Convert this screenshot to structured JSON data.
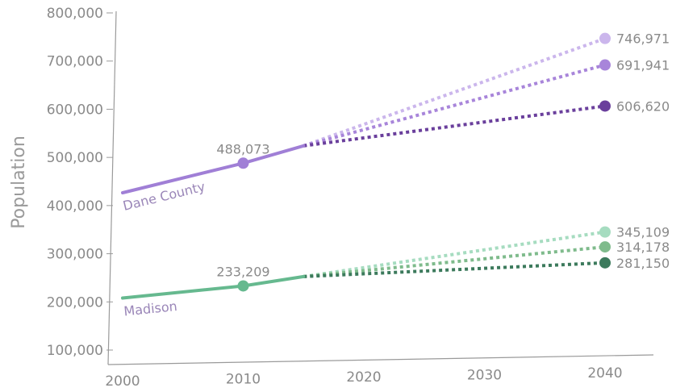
{
  "chart_data": {
    "type": "line",
    "ylabel": "Population",
    "xlabel": "",
    "xlim": [
      1997,
      2045
    ],
    "ylim": [
      100000,
      800000
    ],
    "x_ticks": [
      2000,
      2010,
      2020,
      2030,
      2040
    ],
    "x_tick_labels": [
      "2000",
      "2010",
      "2020",
      "2030",
      "2040"
    ],
    "y_ticks": [
      100000,
      200000,
      300000,
      400000,
      500000,
      600000,
      700000,
      800000
    ],
    "y_tick_labels": [
      "100,000",
      "200,000",
      "300,000",
      "400,000",
      "500,000",
      "600,000",
      "700,000",
      "800,000"
    ],
    "grid": false,
    "groups": [
      {
        "name": "Dane County",
        "color": "#a07fd6",
        "historical": {
          "x": [
            2000,
            2010,
            2015
          ],
          "y": [
            426500,
            488073,
            524000
          ]
        },
        "marker": {
          "x": 2010,
          "y": 488073,
          "label": "488,073"
        },
        "projections": [
          {
            "color": "#cbb6ec",
            "x": [
              2015,
              2040
            ],
            "y": [
              524000,
              746971
            ],
            "end_label": "746,971"
          },
          {
            "color": "#a885da",
            "x": [
              2015,
              2040
            ],
            "y": [
              524000,
              691941
            ],
            "end_label": "691,941"
          },
          {
            "color": "#6a3f9c",
            "x": [
              2015,
              2040
            ],
            "y": [
              524000,
              606620
            ],
            "end_label": "606,620"
          }
        ]
      },
      {
        "name": "Madison",
        "color": "#66b98f",
        "historical": {
          "x": [
            2000,
            2010,
            2015
          ],
          "y": [
            208054,
            233209,
            252500
          ]
        },
        "marker": {
          "x": 2010,
          "y": 233209,
          "label": "233,209"
        },
        "projections": [
          {
            "color": "#a6dcc0",
            "x": [
              2015,
              2040
            ],
            "y": [
              252500,
              345109
            ],
            "end_label": "345,109"
          },
          {
            "color": "#7fbb8c",
            "x": [
              2015,
              2040
            ],
            "y": [
              252500,
              314178
            ],
            "end_label": "314,178"
          },
          {
            "color": "#3c7a5c",
            "x": [
              2015,
              2040
            ],
            "y": [
              252500,
              281150
            ],
            "end_label": "281,150"
          }
        ]
      }
    ]
  }
}
